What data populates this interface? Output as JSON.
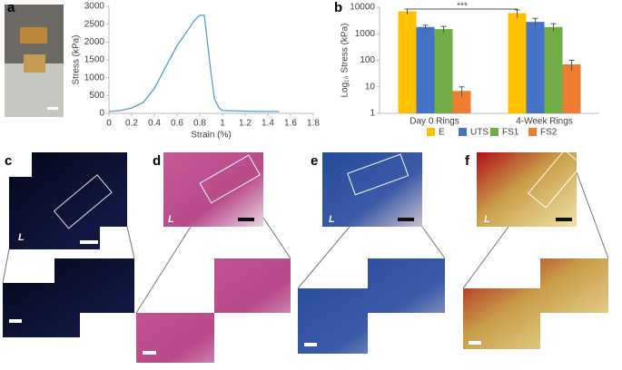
{
  "chart_data": [
    {
      "type": "line",
      "x_label": "Strain (%)",
      "y_label": "Stress (kPa)",
      "x": [
        0,
        0.1,
        0.2,
        0.3,
        0.4,
        0.5,
        0.6,
        0.7,
        0.75,
        0.8,
        0.84,
        0.86,
        0.9,
        0.93,
        0.97,
        1.0,
        1.2,
        1.5
      ],
      "values": [
        50,
        80,
        150,
        300,
        700,
        1300,
        1900,
        2350,
        2600,
        2750,
        2750,
        2200,
        1100,
        400,
        150,
        80,
        60,
        50
      ],
      "color": "#5b9bd5",
      "xlim": [
        0,
        1.8
      ],
      "xticks": [
        0,
        0.2,
        0.4,
        0.6,
        0.8,
        1,
        1.2,
        1.4,
        1.6,
        1.8
      ],
      "ylim": [
        0,
        3000
      ],
      "yticks": [
        0,
        500,
        1000,
        1500,
        2000,
        2500,
        3000
      ]
    },
    {
      "type": "bar",
      "y_label": "Log₁₀ Stress (kPa)",
      "log_scale": true,
      "annotation": "***",
      "categories": [
        "Day 0 Rings",
        "4-Week Rings"
      ],
      "series": [
        {
          "name": "E",
          "color": "#ffc000",
          "values": [
            7000,
            6000
          ],
          "errors": [
            1500,
            2000
          ]
        },
        {
          "name": "UTS",
          "color": "#4472c4",
          "values": [
            1800,
            2800
          ],
          "errors": [
            300,
            1000
          ]
        },
        {
          "name": "FS1",
          "color": "#70ad47",
          "values": [
            1500,
            1800
          ],
          "errors": [
            400,
            600
          ]
        },
        {
          "name": "FS2",
          "color": "#ed7d31",
          "values": [
            7,
            70
          ],
          "errors": [
            3,
            30
          ]
        }
      ],
      "ylim": [
        1,
        10000
      ],
      "yticks": [
        1,
        10,
        100,
        1000,
        10000
      ]
    }
  ],
  "panel_labels": [
    "a",
    "b",
    "c",
    "d",
    "e",
    "f"
  ],
  "image_labels": [
    "L",
    "L",
    "L",
    "L"
  ]
}
